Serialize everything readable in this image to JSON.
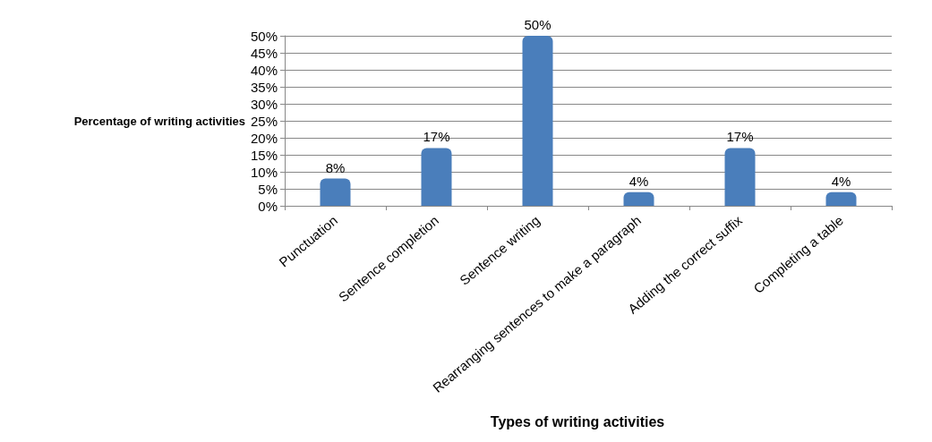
{
  "chart_data": {
    "type": "bar",
    "xlabel": "Types of writing activities",
    "ylabel": "Percentage of writing activities",
    "categories": [
      "Punctuation",
      "Sentence completion",
      "Sentence writing",
      "Rearranging sentences to make a paragraph",
      "Adding the correct suffix",
      "Completing a table"
    ],
    "values": [
      8,
      17,
      50,
      4,
      17,
      4
    ],
    "value_labels": [
      "8%",
      "17%",
      "50%",
      "4%",
      "17%",
      "4%"
    ],
    "color": "#4a7ebb",
    "ylim": [
      0,
      50
    ],
    "yticks": [
      {
        "value": 0,
        "label": "0%"
      },
      {
        "value": 5,
        "label": "5%"
      },
      {
        "value": 10,
        "label": "10%"
      },
      {
        "value": 15,
        "label": "15%"
      },
      {
        "value": 20,
        "label": "20%"
      },
      {
        "value": 25,
        "label": "25%"
      },
      {
        "value": 30,
        "label": "30%"
      },
      {
        "value": 35,
        "label": "35%"
      },
      {
        "value": 40,
        "label": "40%"
      },
      {
        "value": 45,
        "label": "45%"
      },
      {
        "value": 50,
        "label": "50%"
      }
    ],
    "grid": "y"
  }
}
